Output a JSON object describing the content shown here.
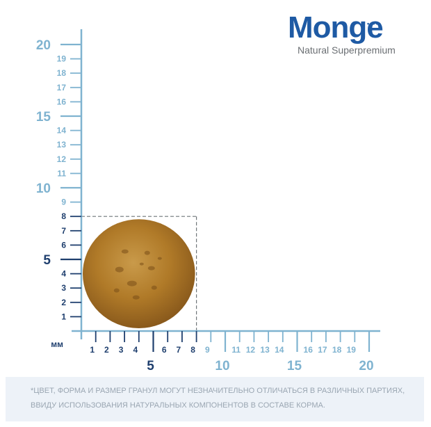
{
  "brand": {
    "name": "Monge",
    "tagline": "Natural Superpremium",
    "color": "#1e5aa4"
  },
  "footnote": {
    "line1": "*ЦВЕТ, ФОРМА И РАЗМЕР ГРАНУЛ МОГУТ НЕЗНАЧИТЕЛЬНО ОТЛИЧАТЬСЯ В РАЗЛИЧНЫХ ПАРТИЯХ,",
    "line2": "ВВИДУ ИСПОЛЬЗОВАНИЯ НАТУРАЛЬНЫХ КОМПОНЕНТОВ В СОСТАВЕ КОРМА."
  },
  "chart_data": {
    "type": "scatter",
    "title": "",
    "unit_label": "мм",
    "xlim": [
      0,
      20
    ],
    "ylim": [
      0,
      20
    ],
    "x_ticks_minor": [
      1,
      2,
      3,
      4,
      6,
      7,
      8,
      9,
      11,
      12,
      13,
      14,
      16,
      17,
      18,
      19
    ],
    "x_ticks_major": [
      5,
      10,
      15,
      20
    ],
    "y_ticks_minor": [
      1,
      2,
      3,
      4,
      6,
      7,
      8,
      9,
      11,
      12,
      13,
      14,
      16,
      17,
      18,
      19
    ],
    "y_ticks_major": [
      5,
      10,
      15,
      20
    ],
    "highlight_ticks_x": [
      1,
      2,
      3,
      4,
      5,
      6,
      7,
      8
    ],
    "highlight_ticks_y": [
      1,
      2,
      3,
      4,
      5,
      6,
      7,
      8
    ],
    "kibble": {
      "width": 8,
      "height": 8,
      "color": "#b07a28"
    },
    "colors": {
      "axis": "#7fb3d0",
      "highlight": "#1f3f6e",
      "dash": "#6f7579"
    },
    "grid": false
  }
}
